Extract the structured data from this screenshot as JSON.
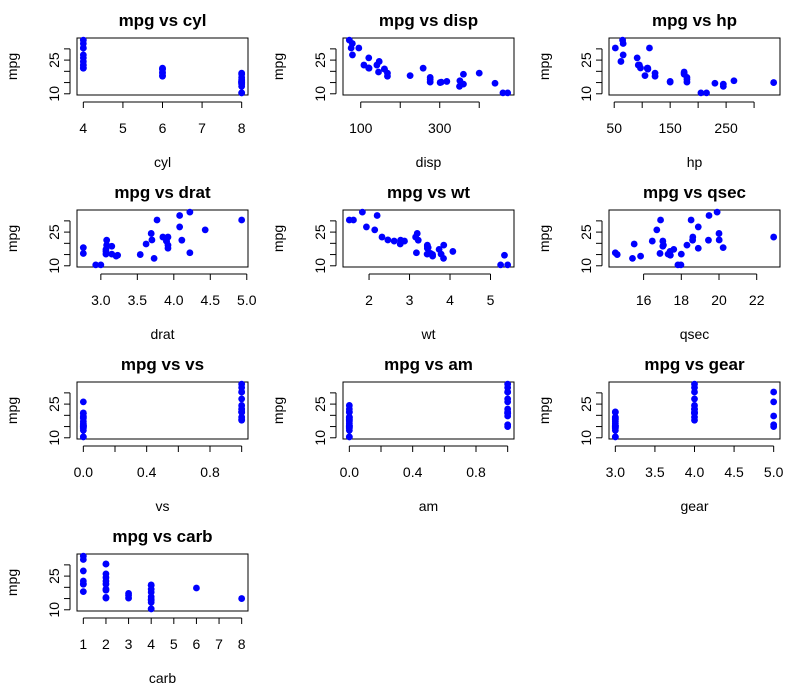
{
  "point_color": "#0000FF",
  "chart_data": [
    {
      "type": "scatter",
      "title": "mpg vs cyl",
      "xlabel": "cyl",
      "ylabel": "mpg",
      "x": [
        6,
        6,
        4,
        6,
        8,
        6,
        8,
        4,
        4,
        6,
        6,
        8,
        8,
        8,
        8,
        8,
        8,
        4,
        4,
        4,
        4,
        8,
        8,
        8,
        8,
        4,
        4,
        4,
        8,
        6,
        8,
        4
      ],
      "xticks": [
        4,
        5,
        6,
        7,
        8
      ],
      "xticklabels": [
        "4",
        "5",
        "6",
        "7",
        "8"
      ]
    },
    {
      "type": "scatter",
      "title": "mpg vs disp",
      "xlabel": "disp",
      "ylabel": "mpg",
      "x": [
        160,
        160,
        108,
        258,
        360,
        225,
        360,
        146.7,
        140.8,
        167.6,
        167.6,
        275.8,
        275.8,
        275.8,
        472,
        460,
        440,
        78.7,
        75.7,
        71.1,
        120.1,
        318,
        304,
        350,
        400,
        79,
        120.3,
        95.1,
        351,
        145,
        301,
        121
      ],
      "xticks": [
        100,
        200,
        300,
        400
      ],
      "xticklabels": [
        "100",
        "",
        "300",
        ""
      ]
    },
    {
      "type": "scatter",
      "title": "mpg vs hp",
      "xlabel": "hp",
      "ylabel": "mpg",
      "x": [
        110,
        110,
        93,
        110,
        175,
        105,
        245,
        62,
        95,
        123,
        123,
        180,
        180,
        180,
        205,
        215,
        230,
        66,
        52,
        65,
        97,
        150,
        150,
        245,
        175,
        66,
        91,
        113,
        264,
        175,
        335,
        109
      ],
      "xticks": [
        50,
        100,
        150,
        200,
        250,
        300
      ],
      "xticklabels": [
        "50",
        "",
        "150",
        "",
        "250",
        ""
      ]
    },
    {
      "type": "scatter",
      "title": "mpg vs drat",
      "xlabel": "drat",
      "ylabel": "mpg",
      "x": [
        3.9,
        3.9,
        3.85,
        3.08,
        3.15,
        2.76,
        3.21,
        3.69,
        3.92,
        3.92,
        3.92,
        3.07,
        3.07,
        3.07,
        2.93,
        3.0,
        3.23,
        4.08,
        4.93,
        4.22,
        3.7,
        2.76,
        3.15,
        3.73,
        3.08,
        4.08,
        4.43,
        3.77,
        4.22,
        3.62,
        3.54,
        4.11
      ],
      "xticks": [
        3.0,
        3.5,
        4.0,
        4.5,
        5.0
      ],
      "xticklabels": [
        "3.0",
        "3.5",
        "4.0",
        "4.5",
        "5.0"
      ]
    },
    {
      "type": "scatter",
      "title": "mpg vs wt",
      "xlabel": "wt",
      "ylabel": "mpg",
      "x": [
        2.62,
        2.875,
        2.32,
        3.215,
        3.44,
        3.46,
        3.57,
        3.19,
        3.15,
        3.44,
        3.44,
        4.07,
        3.73,
        3.78,
        5.25,
        5.424,
        5.345,
        2.2,
        1.615,
        1.835,
        2.465,
        3.52,
        3.435,
        3.84,
        3.845,
        1.935,
        2.14,
        1.513,
        3.17,
        2.77,
        3.57,
        2.78
      ],
      "xticks": [
        2,
        3,
        4,
        5
      ],
      "xticklabels": [
        "2",
        "3",
        "4",
        "5"
      ]
    },
    {
      "type": "scatter",
      "title": "mpg vs qsec",
      "xlabel": "qsec",
      "ylabel": "mpg",
      "x": [
        16.46,
        17.02,
        18.61,
        19.44,
        17.02,
        20.22,
        15.84,
        20.0,
        22.9,
        18.3,
        18.9,
        17.4,
        17.6,
        18.0,
        17.98,
        17.82,
        17.42,
        19.47,
        18.52,
        19.9,
        20.01,
        16.87,
        17.3,
        15.41,
        17.05,
        18.9,
        16.7,
        16.9,
        14.5,
        15.5,
        14.6,
        18.6
      ],
      "xticks": [
        16,
        18,
        20,
        22
      ],
      "xticklabels": [
        "16",
        "18",
        "20",
        "22"
      ]
    },
    {
      "type": "scatter",
      "title": "mpg vs vs",
      "xlabel": "vs",
      "ylabel": "mpg",
      "x": [
        0,
        0,
        1,
        1,
        0,
        1,
        0,
        1,
        1,
        1,
        1,
        0,
        0,
        0,
        0,
        0,
        0,
        1,
        1,
        1,
        1,
        0,
        0,
        0,
        0,
        1,
        0,
        1,
        0,
        0,
        0,
        1
      ],
      "xticks": [
        0,
        0.2,
        0.4,
        0.6,
        0.8,
        1.0
      ],
      "xticklabels": [
        "0.0",
        "",
        "0.4",
        "",
        "0.8",
        ""
      ]
    },
    {
      "type": "scatter",
      "title": "mpg vs am",
      "xlabel": "am",
      "ylabel": "mpg",
      "x": [
        1,
        1,
        1,
        0,
        0,
        0,
        0,
        0,
        0,
        0,
        0,
        0,
        0,
        0,
        0,
        0,
        0,
        1,
        1,
        1,
        0,
        0,
        0,
        0,
        0,
        1,
        1,
        1,
        1,
        1,
        1,
        1
      ],
      "xticks": [
        0,
        0.2,
        0.4,
        0.6,
        0.8,
        1.0
      ],
      "xticklabels": [
        "0.0",
        "",
        "0.4",
        "",
        "0.8",
        ""
      ]
    },
    {
      "type": "scatter",
      "title": "mpg vs gear",
      "xlabel": "gear",
      "ylabel": "mpg",
      "x": [
        4,
        4,
        4,
        3,
        3,
        3,
        3,
        4,
        4,
        4,
        4,
        3,
        3,
        3,
        3,
        3,
        3,
        4,
        4,
        4,
        3,
        3,
        3,
        3,
        3,
        4,
        5,
        5,
        5,
        5,
        5,
        4
      ],
      "xticks": [
        3.0,
        3.5,
        4.0,
        4.5,
        5.0
      ],
      "xticklabels": [
        "3.0",
        "3.5",
        "4.0",
        "4.5",
        "5.0"
      ]
    },
    {
      "type": "scatter",
      "title": "mpg vs carb",
      "xlabel": "carb",
      "ylabel": "mpg",
      "x": [
        4,
        4,
        1,
        1,
        2,
        1,
        4,
        2,
        2,
        4,
        4,
        3,
        3,
        3,
        4,
        4,
        4,
        1,
        2,
        1,
        1,
        2,
        2,
        4,
        2,
        1,
        2,
        2,
        4,
        6,
        8,
        2
      ],
      "xticks": [
        1,
        2,
        3,
        4,
        5,
        6,
        7,
        8
      ],
      "xticklabels": [
        "1",
        "2",
        "3",
        "4",
        "5",
        "6",
        "7",
        "8"
      ]
    }
  ],
  "mpg": [
    21,
    21,
    22.8,
    21.4,
    18.7,
    18.1,
    14.3,
    24.4,
    22.8,
    19.2,
    17.8,
    16.4,
    17.3,
    15.2,
    10.4,
    10.4,
    14.7,
    32.4,
    30.4,
    33.9,
    21.5,
    15.5,
    15.2,
    13.3,
    19.2,
    27.3,
    26,
    30.4,
    15.8,
    19.7,
    15,
    21.4
  ],
  "yticks": [
    10,
    15,
    20,
    25,
    30
  ],
  "yticklabels": [
    "10",
    "",
    "",
    "25",
    ""
  ]
}
